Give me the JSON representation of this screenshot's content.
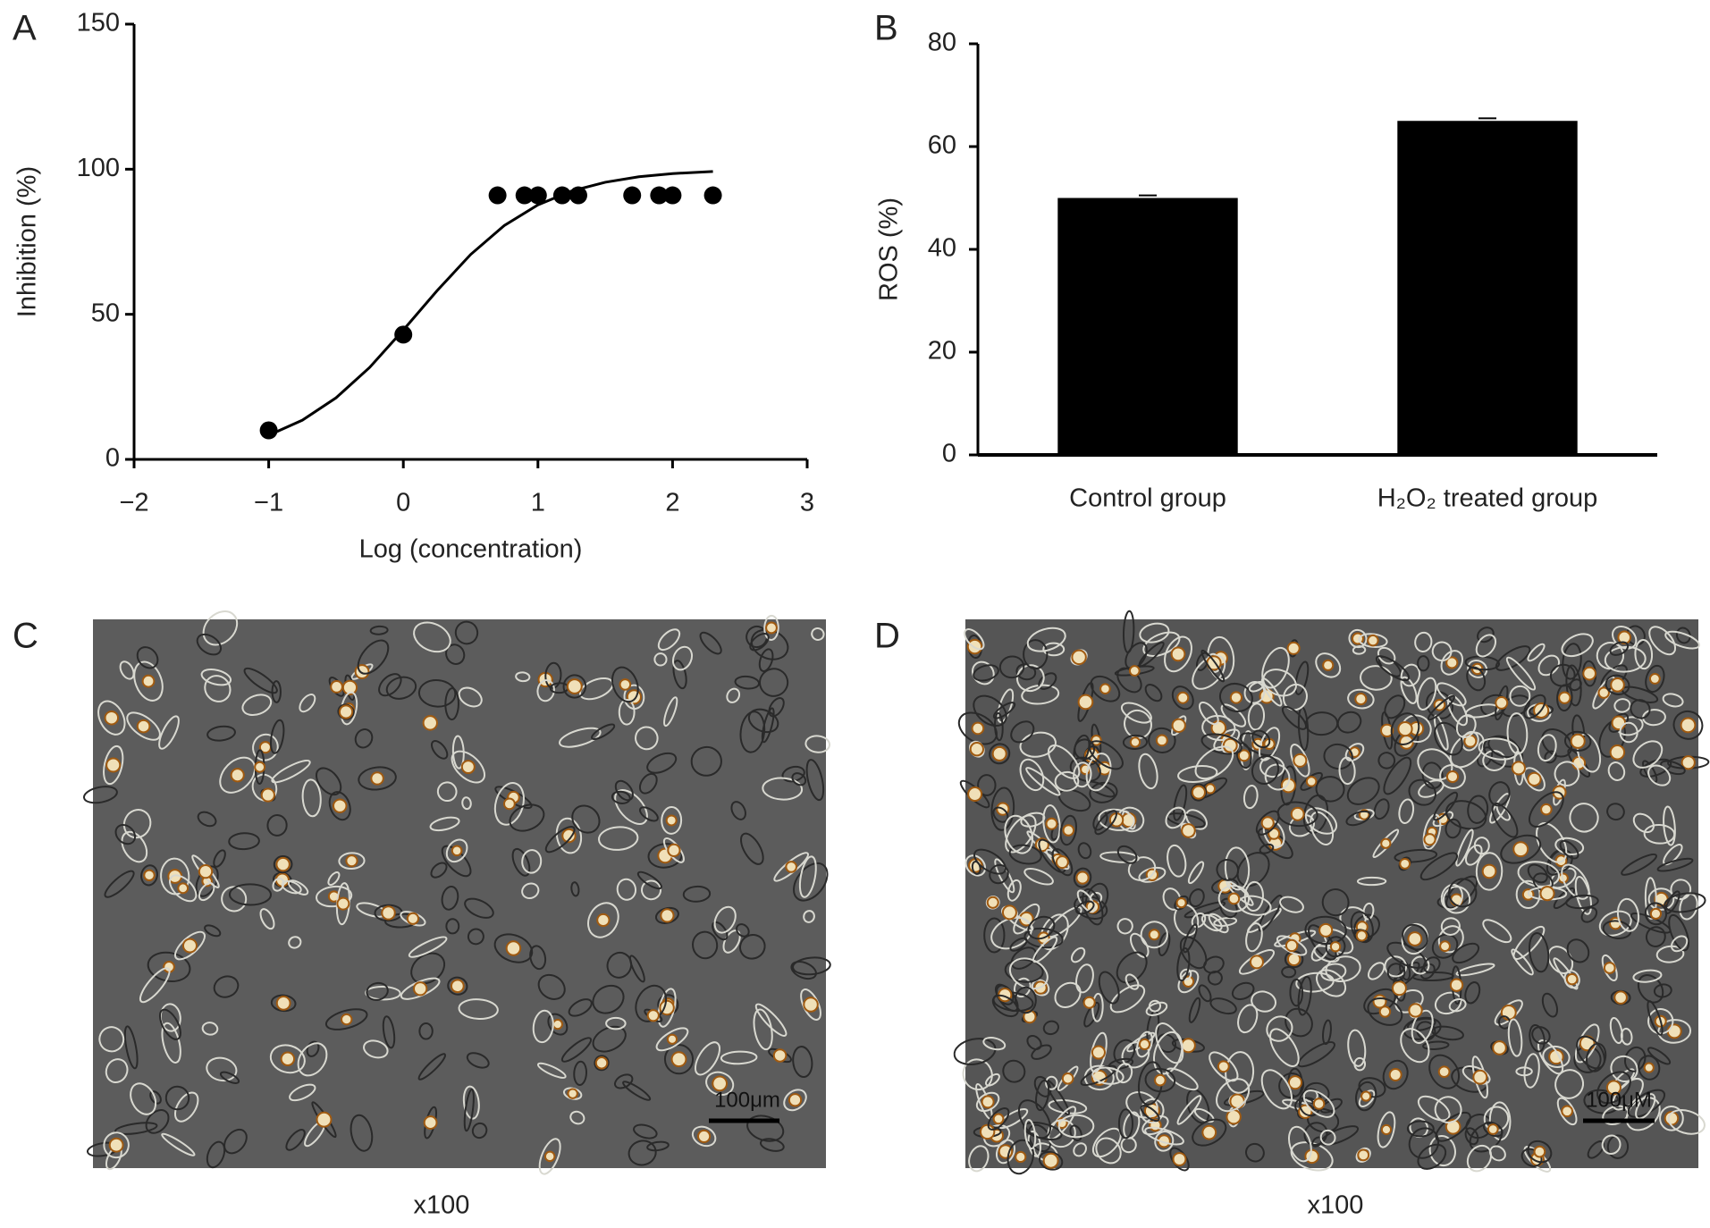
{
  "chart_data": [
    {
      "type": "scatter",
      "xlabel": "Log (concentration)",
      "ylabel": "Inhibition (%)",
      "xlim": [
        -2,
        3
      ],
      "xticks": [
        {
          "value": -2,
          "label": "−2"
        },
        {
          "value": -1,
          "label": "−1"
        },
        0,
        1,
        2,
        3
      ],
      "ylim": [
        0,
        150
      ],
      "yticks": [
        0,
        50,
        100,
        150
      ],
      "grid": false,
      "series": [
        {
          "mode": "markers",
          "color": "#000000",
          "x": [
            -1,
            0,
            0.7,
            0.9,
            1,
            1.18,
            1.3,
            1.7,
            1.9,
            2,
            2.3
          ],
          "values": [
            10,
            43,
            91,
            91,
            91,
            91,
            91,
            91,
            91,
            91,
            91
          ]
        },
        {
          "mode": "line",
          "color": "#000000",
          "x": [
            -1,
            -0.75,
            -0.5,
            -0.25,
            0,
            0.25,
            0.5,
            0.75,
            1,
            1.25,
            1.5,
            1.75,
            2,
            2.3
          ],
          "values": [
            8.3,
            13.5,
            21.2,
            31.7,
            44.6,
            58.1,
            70.6,
            80.6,
            87.7,
            92.5,
            95.5,
            97.4,
            98.5,
            99.2
          ]
        }
      ]
    },
    {
      "type": "bar",
      "ylabel": "ROS (%)",
      "categories": [
        "Control group",
        "H₂O₂ treated group"
      ],
      "values": [
        50,
        65
      ],
      "errors": [
        0.5,
        0.5
      ],
      "color": "#000000",
      "ylim": [
        0,
        80
      ],
      "yticks": [
        0,
        20,
        40,
        60,
        80
      ],
      "grid": false
    }
  ],
  "panels": [
    "A",
    "B",
    "C",
    "D"
  ],
  "images": [
    {
      "scale_bar": "100μm",
      "caption": "x100"
    },
    {
      "scale_bar": "100μM",
      "caption": "x100"
    }
  ]
}
